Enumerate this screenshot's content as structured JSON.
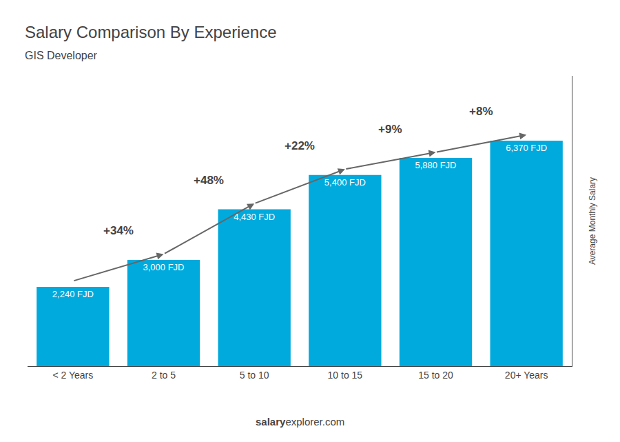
{
  "chart_data": {
    "type": "bar",
    "title": "Salary Comparison By Experience",
    "subtitle": "GIS Developer",
    "categories": [
      "< 2 Years",
      "2 to 5",
      "5 to 10",
      "10 to 15",
      "15 to 20",
      "20+ Years"
    ],
    "values": [
      2240,
      3000,
      4430,
      5400,
      5880,
      6370
    ],
    "value_labels": [
      "2,240 FJD",
      "3,000 FJD",
      "4,430 FJD",
      "5,400 FJD",
      "5,880 FJD",
      "6,370 FJD"
    ],
    "data_labels": true,
    "annotations": [
      "+34%",
      "+48%",
      "+22%",
      "+9%",
      "+8%"
    ],
    "footer": [
      "salary",
      "explorer.com"
    ],
    "ylabel": "Average Monthly Salary",
    "color": "#00aadd",
    "ylim": [
      0,
      8200
    ],
    "tick_labels": "x",
    "grid": false
  }
}
